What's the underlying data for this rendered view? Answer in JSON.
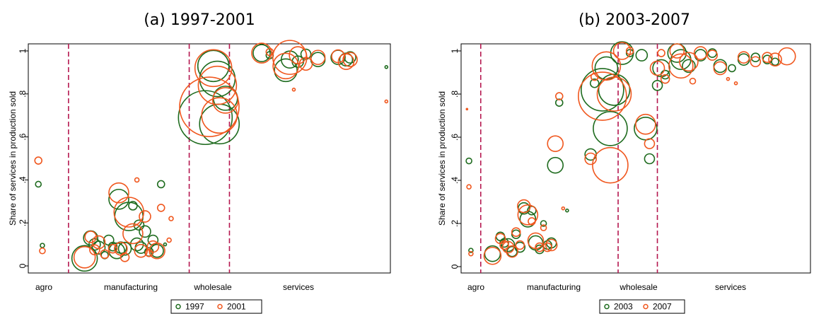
{
  "chart_data": [
    {
      "type": "scatter",
      "title": "(a) 1997-2001",
      "xlabel": "",
      "ylabel": "Share of services in production sold",
      "ylim": [
        0,
        1
      ],
      "yticks": [
        "0",
        ".2",
        ".4",
        ".6",
        ".8",
        "1"
      ],
      "xcategories": [
        "agro",
        "manufacturing",
        "wholesale",
        "services"
      ],
      "sector_dividers": [
        10,
        40,
        50
      ],
      "xlim": [
        0,
        90
      ],
      "legend": {
        "position": "bottom-center"
      },
      "series": [
        {
          "name": "1997",
          "color": "#1e6b1e",
          "points": [
            {
              "x": 2.5,
              "y": 0.38,
              "size": 4
            },
            {
              "x": 3.5,
              "y": 0.095,
              "size": 3
            },
            {
              "x": 14,
              "y": 0.035,
              "size": 18
            },
            {
              "x": 15.5,
              "y": 0.13,
              "size": 10
            },
            {
              "x": 16.5,
              "y": 0.1,
              "size": 8
            },
            {
              "x": 17.5,
              "y": 0.085,
              "size": 9
            },
            {
              "x": 19,
              "y": 0.05,
              "size": 5
            },
            {
              "x": 20,
              "y": 0.12,
              "size": 7
            },
            {
              "x": 21,
              "y": 0.09,
              "size": 6
            },
            {
              "x": 22,
              "y": 0.07,
              "size": 11
            },
            {
              "x": 22.5,
              "y": 0.31,
              "size": 14
            },
            {
              "x": 23,
              "y": 0.085,
              "size": 8
            },
            {
              "x": 24,
              "y": 0.08,
              "size": 9
            },
            {
              "x": 25,
              "y": 0.23,
              "size": 20
            },
            {
              "x": 26,
              "y": 0.28,
              "size": 6
            },
            {
              "x": 27,
              "y": 0.1,
              "size": 9
            },
            {
              "x": 27.5,
              "y": 0.19,
              "size": 7
            },
            {
              "x": 28,
              "y": 0.085,
              "size": 8
            },
            {
              "x": 29,
              "y": 0.16,
              "size": 8
            },
            {
              "x": 30,
              "y": 0.065,
              "size": 6
            },
            {
              "x": 31,
              "y": 0.12,
              "size": 7
            },
            {
              "x": 32,
              "y": 0.07,
              "size": 9
            },
            {
              "x": 33,
              "y": 0.38,
              "size": 5
            },
            {
              "x": 34,
              "y": 0.1,
              "size": 2
            },
            {
              "x": 44,
              "y": 0.69,
              "size": 38
            },
            {
              "x": 46,
              "y": 0.93,
              "size": 22
            },
            {
              "x": 47,
              "y": 0.87,
              "size": 25
            },
            {
              "x": 47.5,
              "y": 0.66,
              "size": 28
            },
            {
              "x": 49,
              "y": 0.78,
              "size": 17
            },
            {
              "x": 58,
              "y": 0.99,
              "size": 12
            },
            {
              "x": 60,
              "y": 0.98,
              "size": 5
            },
            {
              "x": 64,
              "y": 0.91,
              "size": 16
            },
            {
              "x": 65,
              "y": 0.96,
              "size": 12
            },
            {
              "x": 67,
              "y": 0.95,
              "size": 8
            },
            {
              "x": 69,
              "y": 0.985,
              "size": 7
            },
            {
              "x": 72,
              "y": 0.96,
              "size": 10
            },
            {
              "x": 77,
              "y": 0.97,
              "size": 10
            },
            {
              "x": 79,
              "y": 0.96,
              "size": 9
            },
            {
              "x": 80,
              "y": 0.97,
              "size": 8
            },
            {
              "x": 89,
              "y": 0.925,
              "size": 2
            }
          ]
        },
        {
          "name": "2001",
          "color": "#f0571e",
          "points": [
            {
              "x": 2.5,
              "y": 0.49,
              "size": 5
            },
            {
              "x": 3.5,
              "y": 0.07,
              "size": 4
            },
            {
              "x": 14,
              "y": 0.04,
              "size": 15
            },
            {
              "x": 15.5,
              "y": 0.135,
              "size": 8
            },
            {
              "x": 16.5,
              "y": 0.075,
              "size": 7
            },
            {
              "x": 17.5,
              "y": 0.11,
              "size": 9
            },
            {
              "x": 19,
              "y": 0.055,
              "size": 6
            },
            {
              "x": 21,
              "y": 0.08,
              "size": 6
            },
            {
              "x": 22.5,
              "y": 0.34,
              "size": 14
            },
            {
              "x": 23,
              "y": 0.08,
              "size": 9
            },
            {
              "x": 24,
              "y": 0.04,
              "size": 6
            },
            {
              "x": 25,
              "y": 0.25,
              "size": 21
            },
            {
              "x": 26,
              "y": 0.15,
              "size": 14
            },
            {
              "x": 27,
              "y": 0.4,
              "size": 3
            },
            {
              "x": 28,
              "y": 0.07,
              "size": 9
            },
            {
              "x": 29,
              "y": 0.23,
              "size": 8
            },
            {
              "x": 30,
              "y": 0.06,
              "size": 5
            },
            {
              "x": 31,
              "y": 0.09,
              "size": 8
            },
            {
              "x": 32,
              "y": 0.07,
              "size": 11
            },
            {
              "x": 33,
              "y": 0.27,
              "size": 5
            },
            {
              "x": 35,
              "y": 0.12,
              "size": 3
            },
            {
              "x": 35.5,
              "y": 0.22,
              "size": 3
            },
            {
              "x": 45,
              "y": 0.74,
              "size": 42
            },
            {
              "x": 46,
              "y": 0.92,
              "size": 26
            },
            {
              "x": 47,
              "y": 0.84,
              "size": 27
            },
            {
              "x": 47.5,
              "y": 0.7,
              "size": 25
            },
            {
              "x": 49,
              "y": 0.77,
              "size": 18
            },
            {
              "x": 58,
              "y": 0.99,
              "size": 14
            },
            {
              "x": 60,
              "y": 0.995,
              "size": 5
            },
            {
              "x": 64,
              "y": 0.93,
              "size": 18
            },
            {
              "x": 65,
              "y": 0.97,
              "size": 24
            },
            {
              "x": 66,
              "y": 0.82,
              "size": 2
            },
            {
              "x": 67,
              "y": 0.98,
              "size": 12
            },
            {
              "x": 69,
              "y": 0.94,
              "size": 9
            },
            {
              "x": 72,
              "y": 0.97,
              "size": 10
            },
            {
              "x": 77,
              "y": 0.975,
              "size": 9
            },
            {
              "x": 79,
              "y": 0.95,
              "size": 11
            },
            {
              "x": 80,
              "y": 0.96,
              "size": 10
            },
            {
              "x": 89,
              "y": 0.765,
              "size": 2
            }
          ]
        }
      ]
    },
    {
      "type": "scatter",
      "title": "(b) 2003-2007",
      "xlabel": "",
      "ylabel": "Share of services in production sold",
      "ylim": [
        0,
        1
      ],
      "yticks": [
        "0",
        ".2",
        ".4",
        ".6",
        ".8",
        "1"
      ],
      "xcategories": [
        "agro",
        "manufacturing",
        "wholesale",
        "services"
      ],
      "sector_dividers": [
        5,
        40,
        50
      ],
      "xlim": [
        0,
        89
      ],
      "legend": {
        "position": "bottom-center"
      },
      "series": [
        {
          "name": "2003",
          "color": "#1e6b1e",
          "points": [
            {
              "x": 2,
              "y": 0.49,
              "size": 4
            },
            {
              "x": 2.5,
              "y": 0.075,
              "size": 3
            },
            {
              "x": 8,
              "y": 0.06,
              "size": 11
            },
            {
              "x": 10,
              "y": 0.14,
              "size": 6
            },
            {
              "x": 11,
              "y": 0.11,
              "size": 6
            },
            {
              "x": 12,
              "y": 0.1,
              "size": 9
            },
            {
              "x": 13,
              "y": 0.07,
              "size": 7
            },
            {
              "x": 14,
              "y": 0.15,
              "size": 6
            },
            {
              "x": 15,
              "y": 0.09,
              "size": 7
            },
            {
              "x": 16,
              "y": 0.27,
              "size": 8
            },
            {
              "x": 17,
              "y": 0.22,
              "size": 11
            },
            {
              "x": 18,
              "y": 0.26,
              "size": 6
            },
            {
              "x": 19,
              "y": 0.11,
              "size": 10
            },
            {
              "x": 20,
              "y": 0.08,
              "size": 6
            },
            {
              "x": 21,
              "y": 0.2,
              "size": 4
            },
            {
              "x": 22,
              "y": 0.1,
              "size": 6
            },
            {
              "x": 23,
              "y": 0.11,
              "size": 7
            },
            {
              "x": 24,
              "y": 0.47,
              "size": 11
            },
            {
              "x": 25,
              "y": 0.76,
              "size": 5
            },
            {
              "x": 27,
              "y": 0.26,
              "size": 2
            },
            {
              "x": 33,
              "y": 0.52,
              "size": 8
            },
            {
              "x": 34,
              "y": 0.85,
              "size": 6
            },
            {
              "x": 36,
              "y": 0.82,
              "size": 30
            },
            {
              "x": 37,
              "y": 0.92,
              "size": 16
            },
            {
              "x": 38,
              "y": 0.64,
              "size": 24
            },
            {
              "x": 39,
              "y": 0.82,
              "size": 22
            },
            {
              "x": 41,
              "y": 0.99,
              "size": 16
            },
            {
              "x": 43,
              "y": 0.99,
              "size": 5
            },
            {
              "x": 46,
              "y": 0.98,
              "size": 8
            },
            {
              "x": 47,
              "y": 0.64,
              "size": 16
            },
            {
              "x": 48,
              "y": 0.5,
              "size": 7
            },
            {
              "x": 50,
              "y": 0.84,
              "size": 7
            },
            {
              "x": 51,
              "y": 0.92,
              "size": 12
            },
            {
              "x": 52,
              "y": 0.89,
              "size": 6
            },
            {
              "x": 55,
              "y": 0.99,
              "size": 13
            },
            {
              "x": 56,
              "y": 0.96,
              "size": 14
            },
            {
              "x": 58,
              "y": 0.93,
              "size": 9
            },
            {
              "x": 61,
              "y": 0.98,
              "size": 8
            },
            {
              "x": 64,
              "y": 0.99,
              "size": 6
            },
            {
              "x": 66,
              "y": 0.93,
              "size": 9
            },
            {
              "x": 69,
              "y": 0.92,
              "size": 5
            },
            {
              "x": 72,
              "y": 0.96,
              "size": 8
            },
            {
              "x": 75,
              "y": 0.97,
              "size": 6
            },
            {
              "x": 78,
              "y": 0.96,
              "size": 6
            },
            {
              "x": 80,
              "y": 0.95,
              "size": 5
            }
          ]
        },
        {
          "name": "2007",
          "color": "#f0571e",
          "points": [
            {
              "x": 2,
              "y": 0.37,
              "size": 3
            },
            {
              "x": 2.5,
              "y": 0.06,
              "size": 3
            },
            {
              "x": 1.5,
              "y": 0.73,
              "size": 1
            },
            {
              "x": 8,
              "y": 0.05,
              "size": 12
            },
            {
              "x": 10,
              "y": 0.13,
              "size": 7
            },
            {
              "x": 11,
              "y": 0.1,
              "size": 6
            },
            {
              "x": 12,
              "y": 0.09,
              "size": 8
            },
            {
              "x": 13,
              "y": 0.07,
              "size": 8
            },
            {
              "x": 14,
              "y": 0.16,
              "size": 6
            },
            {
              "x": 15,
              "y": 0.1,
              "size": 6
            },
            {
              "x": 16,
              "y": 0.28,
              "size": 9
            },
            {
              "x": 17,
              "y": 0.24,
              "size": 14
            },
            {
              "x": 18,
              "y": 0.21,
              "size": 5
            },
            {
              "x": 19,
              "y": 0.12,
              "size": 11
            },
            {
              "x": 20,
              "y": 0.09,
              "size": 6
            },
            {
              "x": 21,
              "y": 0.18,
              "size": 4
            },
            {
              "x": 22,
              "y": 0.09,
              "size": 6
            },
            {
              "x": 23,
              "y": 0.1,
              "size": 8
            },
            {
              "x": 24,
              "y": 0.57,
              "size": 11
            },
            {
              "x": 25,
              "y": 0.79,
              "size": 5
            },
            {
              "x": 26,
              "y": 0.27,
              "size": 2
            },
            {
              "x": 33,
              "y": 0.5,
              "size": 8
            },
            {
              "x": 34,
              "y": 0.88,
              "size": 5
            },
            {
              "x": 36,
              "y": 0.79,
              "size": 34
            },
            {
              "x": 37,
              "y": 0.93,
              "size": 20
            },
            {
              "x": 38,
              "y": 0.47,
              "size": 25
            },
            {
              "x": 39,
              "y": 0.8,
              "size": 24
            },
            {
              "x": 41,
              "y": 1.0,
              "size": 12
            },
            {
              "x": 43,
              "y": 1.0,
              "size": 5
            },
            {
              "x": 47,
              "y": 0.66,
              "size": 14
            },
            {
              "x": 48,
              "y": 0.57,
              "size": 7
            },
            {
              "x": 50,
              "y": 0.92,
              "size": 10
            },
            {
              "x": 51,
              "y": 0.99,
              "size": 5
            },
            {
              "x": 52,
              "y": 0.87,
              "size": 6
            },
            {
              "x": 55,
              "y": 1.0,
              "size": 10
            },
            {
              "x": 56,
              "y": 0.93,
              "size": 17
            },
            {
              "x": 58,
              "y": 0.95,
              "size": 13
            },
            {
              "x": 59,
              "y": 0.86,
              "size": 4
            },
            {
              "x": 61,
              "y": 0.99,
              "size": 9
            },
            {
              "x": 64,
              "y": 0.98,
              "size": 7
            },
            {
              "x": 66,
              "y": 0.92,
              "size": 9
            },
            {
              "x": 68,
              "y": 0.87,
              "size": 2
            },
            {
              "x": 70,
              "y": 0.85,
              "size": 2
            },
            {
              "x": 72,
              "y": 0.97,
              "size": 8
            },
            {
              "x": 75,
              "y": 0.95,
              "size": 7
            },
            {
              "x": 78,
              "y": 0.97,
              "size": 7
            },
            {
              "x": 80,
              "y": 0.96,
              "size": 9
            },
            {
              "x": 83,
              "y": 0.975,
              "size": 12
            }
          ]
        }
      ]
    }
  ]
}
